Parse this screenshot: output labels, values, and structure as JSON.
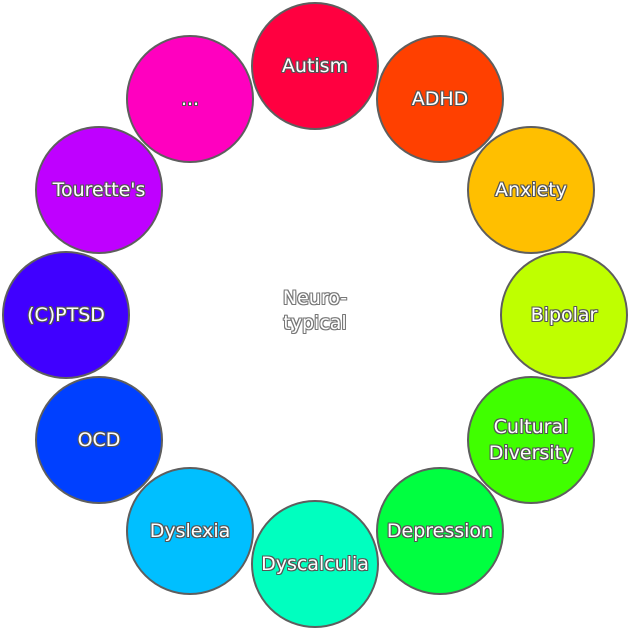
{
  "center": {
    "label": "Neuro-\ntypical"
  },
  "nodes": [
    {
      "label": "Autism",
      "color": "#ff0040"
    },
    {
      "label": "ADHD",
      "color": "#ff4000"
    },
    {
      "label": "Anxiety",
      "color": "#ffbf00"
    },
    {
      "label": "Bipolar",
      "color": "#bfff00"
    },
    {
      "label": "Cultural\nDiversity",
      "color": "#40ff00"
    },
    {
      "label": "Depression",
      "color": "#00ff40"
    },
    {
      "label": "Dyscalculia",
      "color": "#00ffbf"
    },
    {
      "label": "Dyslexia",
      "color": "#00bfff"
    },
    {
      "label": "OCD",
      "color": "#0040ff"
    },
    {
      "label": "(C)PTSD",
      "color": "#4000ff"
    },
    {
      "label": "Tourette's",
      "color": "#bf00ff"
    },
    {
      "label": "...",
      "color": "#ff00bf"
    }
  ]
}
